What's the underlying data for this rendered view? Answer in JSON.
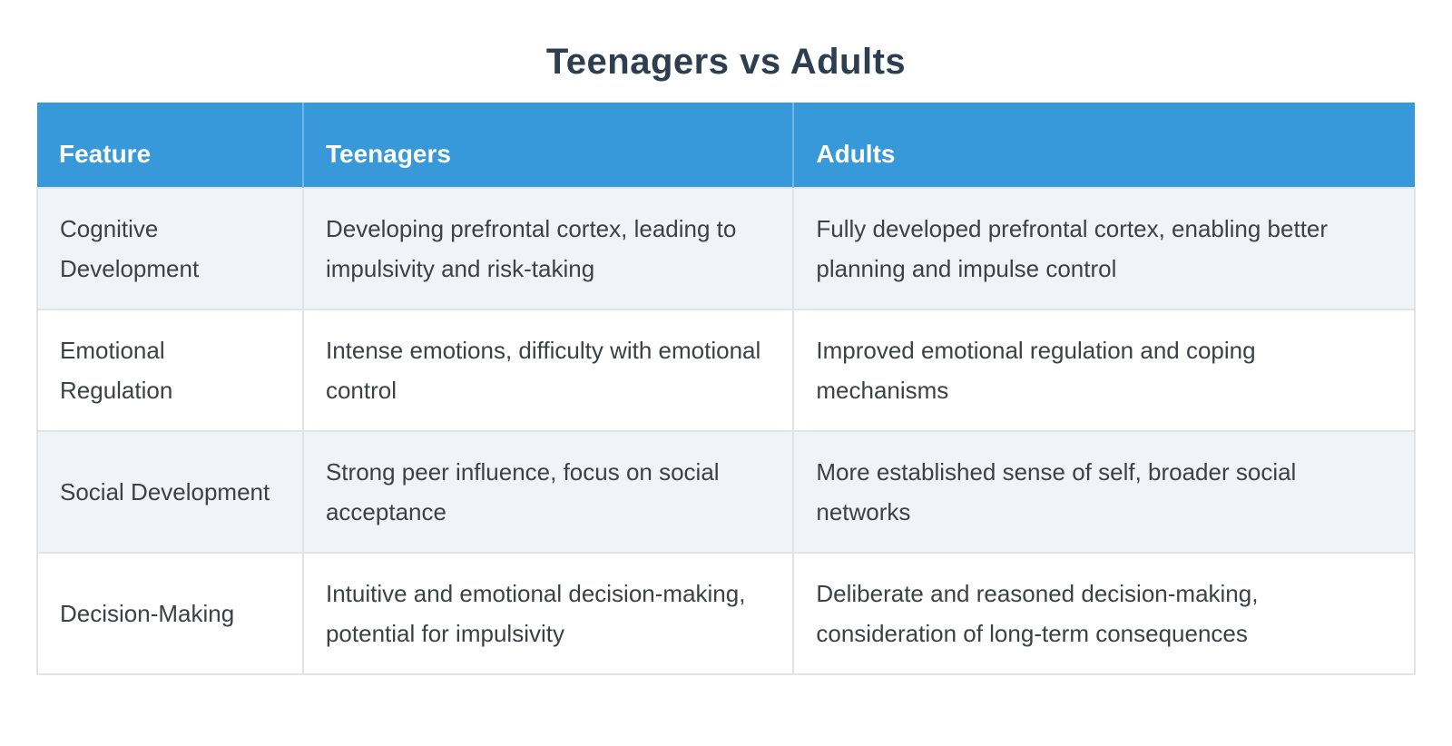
{
  "title": "Teenagers vs Adults",
  "table": {
    "columns": [
      "Feature",
      "Teenagers",
      "Adults"
    ],
    "rows": [
      {
        "feature": "Cognitive Development",
        "teenagers": "Developing prefrontal cortex, leading to impulsivity and risk-taking",
        "adults": "Fully developed prefrontal cortex, enabling better planning and impulse control"
      },
      {
        "feature": "Emotional Regulation",
        "teenagers": "Intense emotions, difficulty with emotional control",
        "adults": "Improved emotional regulation and coping mechanisms"
      },
      {
        "feature": "Social Development",
        "teenagers": "Strong peer influence, focus on social acceptance",
        "adults": "More established sense of self, broader social networks"
      },
      {
        "feature": "Decision-Making",
        "teenagers": "Intuitive and emotional decision-making, potential for impulsivity",
        "adults": "Deliberate and reasoned decision-making, consideration of long-term consequences"
      }
    ]
  },
  "colors": {
    "title_text": "#2c3e50",
    "header_background": "#3798da",
    "header_text": "#ffffff",
    "row_alternate_background": "#f0f4f8",
    "row_background": "#ffffff",
    "grid_line": "#e1e3e7",
    "body_text": "#3d4045"
  }
}
